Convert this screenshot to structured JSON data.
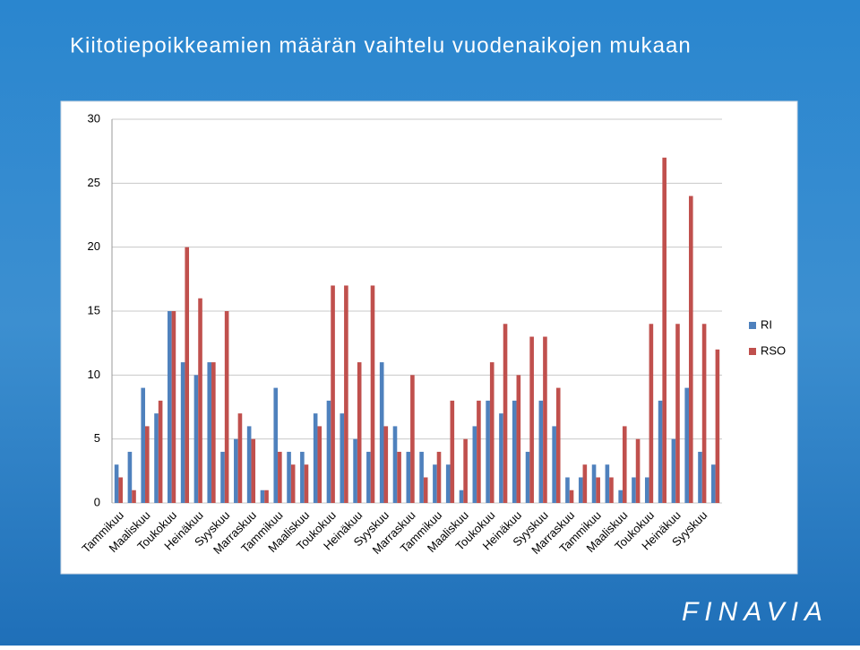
{
  "logo": "FINAVIA",
  "chart_data": {
    "type": "bar",
    "title": "Kiitotiepoikkeamien määrän vaihtelu vuodenaikojen mukaan",
    "categories": [
      "Tammikuu",
      null,
      "Maaliskuu",
      null,
      "Toukokuu",
      null,
      "Heinäkuu",
      null,
      "Syyskuu",
      null,
      "Marraskuu",
      null,
      "Tammikuu",
      null,
      "Maaliskuu",
      null,
      "Toukokuu",
      null,
      "Heinäkuu",
      null,
      "Syyskuu",
      null,
      "Marraskuu",
      null,
      "Tammikuu",
      null,
      "Maaliskuu",
      null,
      "Toukokuu",
      null,
      "Heinäkuu",
      null,
      "Syyskuu",
      null,
      "Marraskuu",
      null,
      "Tammikuu",
      null,
      "Maaliskuu",
      null,
      "Toukokuu",
      null,
      "Heinäkuu",
      null,
      "Syyskuu",
      null
    ],
    "series": [
      {
        "name": "RI",
        "color": "#4f81bd",
        "values": [
          3,
          4,
          9,
          7,
          15,
          11,
          10,
          11,
          4,
          5,
          6,
          1,
          9,
          4,
          4,
          7,
          8,
          7,
          5,
          4,
          11,
          6,
          4,
          4,
          3,
          3,
          1,
          6,
          8,
          7,
          8,
          4,
          8,
          6,
          2,
          2,
          3,
          3,
          1,
          2,
          2,
          8,
          5,
          9,
          4,
          3
        ]
      },
      {
        "name": "RSO",
        "color": "#c0504d",
        "values": [
          2,
          1,
          6,
          8,
          15,
          20,
          16,
          11,
          15,
          7,
          5,
          1,
          4,
          3,
          3,
          6,
          17,
          17,
          11,
          17,
          6,
          4,
          10,
          2,
          4,
          8,
          5,
          8,
          11,
          14,
          10,
          13,
          13,
          9,
          1,
          3,
          2,
          2,
          6,
          5,
          14,
          27,
          14,
          24,
          14,
          12
        ]
      }
    ],
    "ylim": [
      0,
      30
    ],
    "yticks": [
      0,
      5,
      10,
      15,
      20,
      25,
      30
    ],
    "grid": true,
    "legend": "right"
  }
}
